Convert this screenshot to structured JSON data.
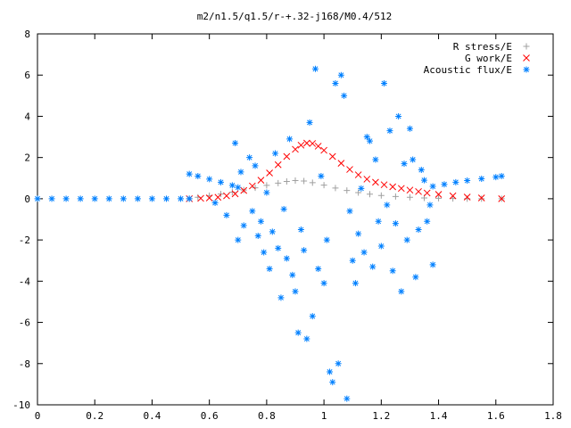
{
  "chart_data": {
    "type": "scatter",
    "title": "m2/n1.5/q1.5/r-+.32-j168/M0.4/512",
    "xlabel": "",
    "ylabel": "",
    "xlim": [
      0,
      1.8
    ],
    "ylim": [
      -10,
      8
    ],
    "x_ticks": [
      "0",
      "0.2",
      "0.4",
      "0.6",
      "0.8",
      "1",
      "1.2",
      "1.4",
      "1.6",
      "1.8"
    ],
    "y_ticks": [
      "8",
      "6",
      "4",
      "2",
      "0",
      "-2",
      "-4",
      "-6",
      "-8",
      "-10"
    ],
    "grid": false,
    "legend_position": "top-right",
    "series": [
      {
        "name": "R stress/E",
        "marker": "plus",
        "color": "#a0a0a0",
        "points": [
          [
            0.53,
            0.0
          ],
          [
            0.56,
            0.07
          ],
          [
            0.6,
            0.15
          ],
          [
            0.64,
            0.23
          ],
          [
            0.68,
            0.32
          ],
          [
            0.72,
            0.42
          ],
          [
            0.76,
            0.53
          ],
          [
            0.8,
            0.65
          ],
          [
            0.84,
            0.76
          ],
          [
            0.87,
            0.84
          ],
          [
            0.9,
            0.88
          ],
          [
            0.93,
            0.86
          ],
          [
            0.96,
            0.78
          ],
          [
            1.0,
            0.66
          ],
          [
            1.04,
            0.52
          ],
          [
            1.08,
            0.4
          ],
          [
            1.12,
            0.3
          ],
          [
            1.16,
            0.22
          ],
          [
            1.2,
            0.16
          ],
          [
            1.25,
            0.11
          ],
          [
            1.3,
            0.07
          ],
          [
            1.35,
            0.04
          ],
          [
            1.4,
            0.02
          ],
          [
            1.45,
            0.01
          ],
          [
            1.5,
            0.0
          ],
          [
            1.55,
            0.0
          ],
          [
            1.62,
            0.0
          ]
        ]
      },
      {
        "name": "G work/E",
        "marker": "cross",
        "color": "#ff0000",
        "points": [
          [
            0.53,
            0.0
          ],
          [
            0.57,
            0.02
          ],
          [
            0.6,
            0.04
          ],
          [
            0.63,
            0.07
          ],
          [
            0.66,
            0.14
          ],
          [
            0.69,
            0.24
          ],
          [
            0.72,
            0.4
          ],
          [
            0.75,
            0.62
          ],
          [
            0.78,
            0.9
          ],
          [
            0.81,
            1.25
          ],
          [
            0.84,
            1.65
          ],
          [
            0.87,
            2.05
          ],
          [
            0.9,
            2.4
          ],
          [
            0.92,
            2.6
          ],
          [
            0.94,
            2.7
          ],
          [
            0.96,
            2.68
          ],
          [
            0.98,
            2.55
          ],
          [
            1.0,
            2.35
          ],
          [
            1.03,
            2.05
          ],
          [
            1.06,
            1.72
          ],
          [
            1.09,
            1.42
          ],
          [
            1.12,
            1.16
          ],
          [
            1.15,
            0.95
          ],
          [
            1.18,
            0.8
          ],
          [
            1.21,
            0.68
          ],
          [
            1.24,
            0.58
          ],
          [
            1.27,
            0.5
          ],
          [
            1.3,
            0.42
          ],
          [
            1.33,
            0.35
          ],
          [
            1.36,
            0.28
          ],
          [
            1.4,
            0.21
          ],
          [
            1.45,
            0.14
          ],
          [
            1.5,
            0.08
          ],
          [
            1.55,
            0.04
          ],
          [
            1.62,
            0.0
          ]
        ]
      },
      {
        "name": "Acoustic flux/E",
        "marker": "star",
        "color": "#0080ff",
        "points": [
          [
            0.0,
            0.0
          ],
          [
            0.05,
            0.0
          ],
          [
            0.1,
            0.0
          ],
          [
            0.15,
            0.0
          ],
          [
            0.2,
            0.0
          ],
          [
            0.25,
            0.0
          ],
          [
            0.3,
            0.0
          ],
          [
            0.35,
            0.0
          ],
          [
            0.4,
            0.0
          ],
          [
            0.45,
            0.0
          ],
          [
            0.5,
            0.0
          ],
          [
            0.53,
            0.0
          ],
          [
            0.53,
            1.2
          ],
          [
            0.56,
            1.1
          ],
          [
            0.6,
            0.95
          ],
          [
            0.64,
            0.8
          ],
          [
            0.68,
            0.65
          ],
          [
            0.7,
            0.55
          ],
          [
            1.38,
            0.6
          ],
          [
            1.42,
            0.7
          ],
          [
            1.46,
            0.8
          ],
          [
            1.5,
            0.88
          ],
          [
            1.55,
            0.97
          ],
          [
            1.6,
            1.05
          ],
          [
            1.62,
            1.1
          ],
          [
            0.62,
            -0.2
          ],
          [
            0.66,
            -0.8
          ],
          [
            0.69,
            2.7
          ],
          [
            0.7,
            -2.0
          ],
          [
            0.71,
            1.3
          ],
          [
            0.72,
            -1.3
          ],
          [
            0.74,
            2.0
          ],
          [
            0.75,
            -0.6
          ],
          [
            0.76,
            1.6
          ],
          [
            0.77,
            -1.8
          ],
          [
            0.78,
            -1.1
          ],
          [
            0.79,
            -2.6
          ],
          [
            0.8,
            0.3
          ],
          [
            0.81,
            -3.4
          ],
          [
            0.82,
            -1.6
          ],
          [
            0.83,
            2.2
          ],
          [
            0.84,
            -2.4
          ],
          [
            0.85,
            -4.8
          ],
          [
            0.86,
            -0.5
          ],
          [
            0.87,
            -2.9
          ],
          [
            0.88,
            2.9
          ],
          [
            0.89,
            -3.7
          ],
          [
            0.9,
            -4.5
          ],
          [
            0.91,
            -6.5
          ],
          [
            0.92,
            -1.5
          ],
          [
            0.93,
            -2.5
          ],
          [
            0.94,
            -6.8
          ],
          [
            0.95,
            3.7
          ],
          [
            0.96,
            -5.7
          ],
          [
            0.97,
            6.3
          ],
          [
            0.98,
            -3.4
          ],
          [
            0.99,
            1.1
          ],
          [
            1.0,
            -4.1
          ],
          [
            1.01,
            -2.0
          ],
          [
            1.02,
            -8.4
          ],
          [
            1.03,
            -8.9
          ],
          [
            1.04,
            5.6
          ],
          [
            1.05,
            -8.0
          ],
          [
            1.06,
            6.0
          ],
          [
            1.07,
            5.0
          ],
          [
            1.08,
            -9.7
          ],
          [
            1.09,
            -0.6
          ],
          [
            1.1,
            -3.0
          ],
          [
            1.11,
            -4.1
          ],
          [
            1.12,
            -1.7
          ],
          [
            1.13,
            0.5
          ],
          [
            1.14,
            -2.6
          ],
          [
            1.15,
            3.0
          ],
          [
            1.16,
            2.8
          ],
          [
            1.17,
            -3.3
          ],
          [
            1.18,
            1.9
          ],
          [
            1.19,
            -1.1
          ],
          [
            1.2,
            -2.3
          ],
          [
            1.21,
            5.6
          ],
          [
            1.22,
            -0.3
          ],
          [
            1.23,
            3.3
          ],
          [
            1.24,
            -3.5
          ],
          [
            1.25,
            -1.2
          ],
          [
            1.26,
            4.0
          ],
          [
            1.27,
            -4.5
          ],
          [
            1.28,
            1.7
          ],
          [
            1.29,
            -2.0
          ],
          [
            1.3,
            3.4
          ],
          [
            1.31,
            1.9
          ],
          [
            1.32,
            -3.8
          ],
          [
            1.33,
            -1.5
          ],
          [
            1.34,
            1.4
          ],
          [
            1.35,
            0.9
          ],
          [
            1.36,
            -1.1
          ],
          [
            1.37,
            -0.3
          ],
          [
            1.38,
            -3.2
          ]
        ]
      }
    ]
  }
}
